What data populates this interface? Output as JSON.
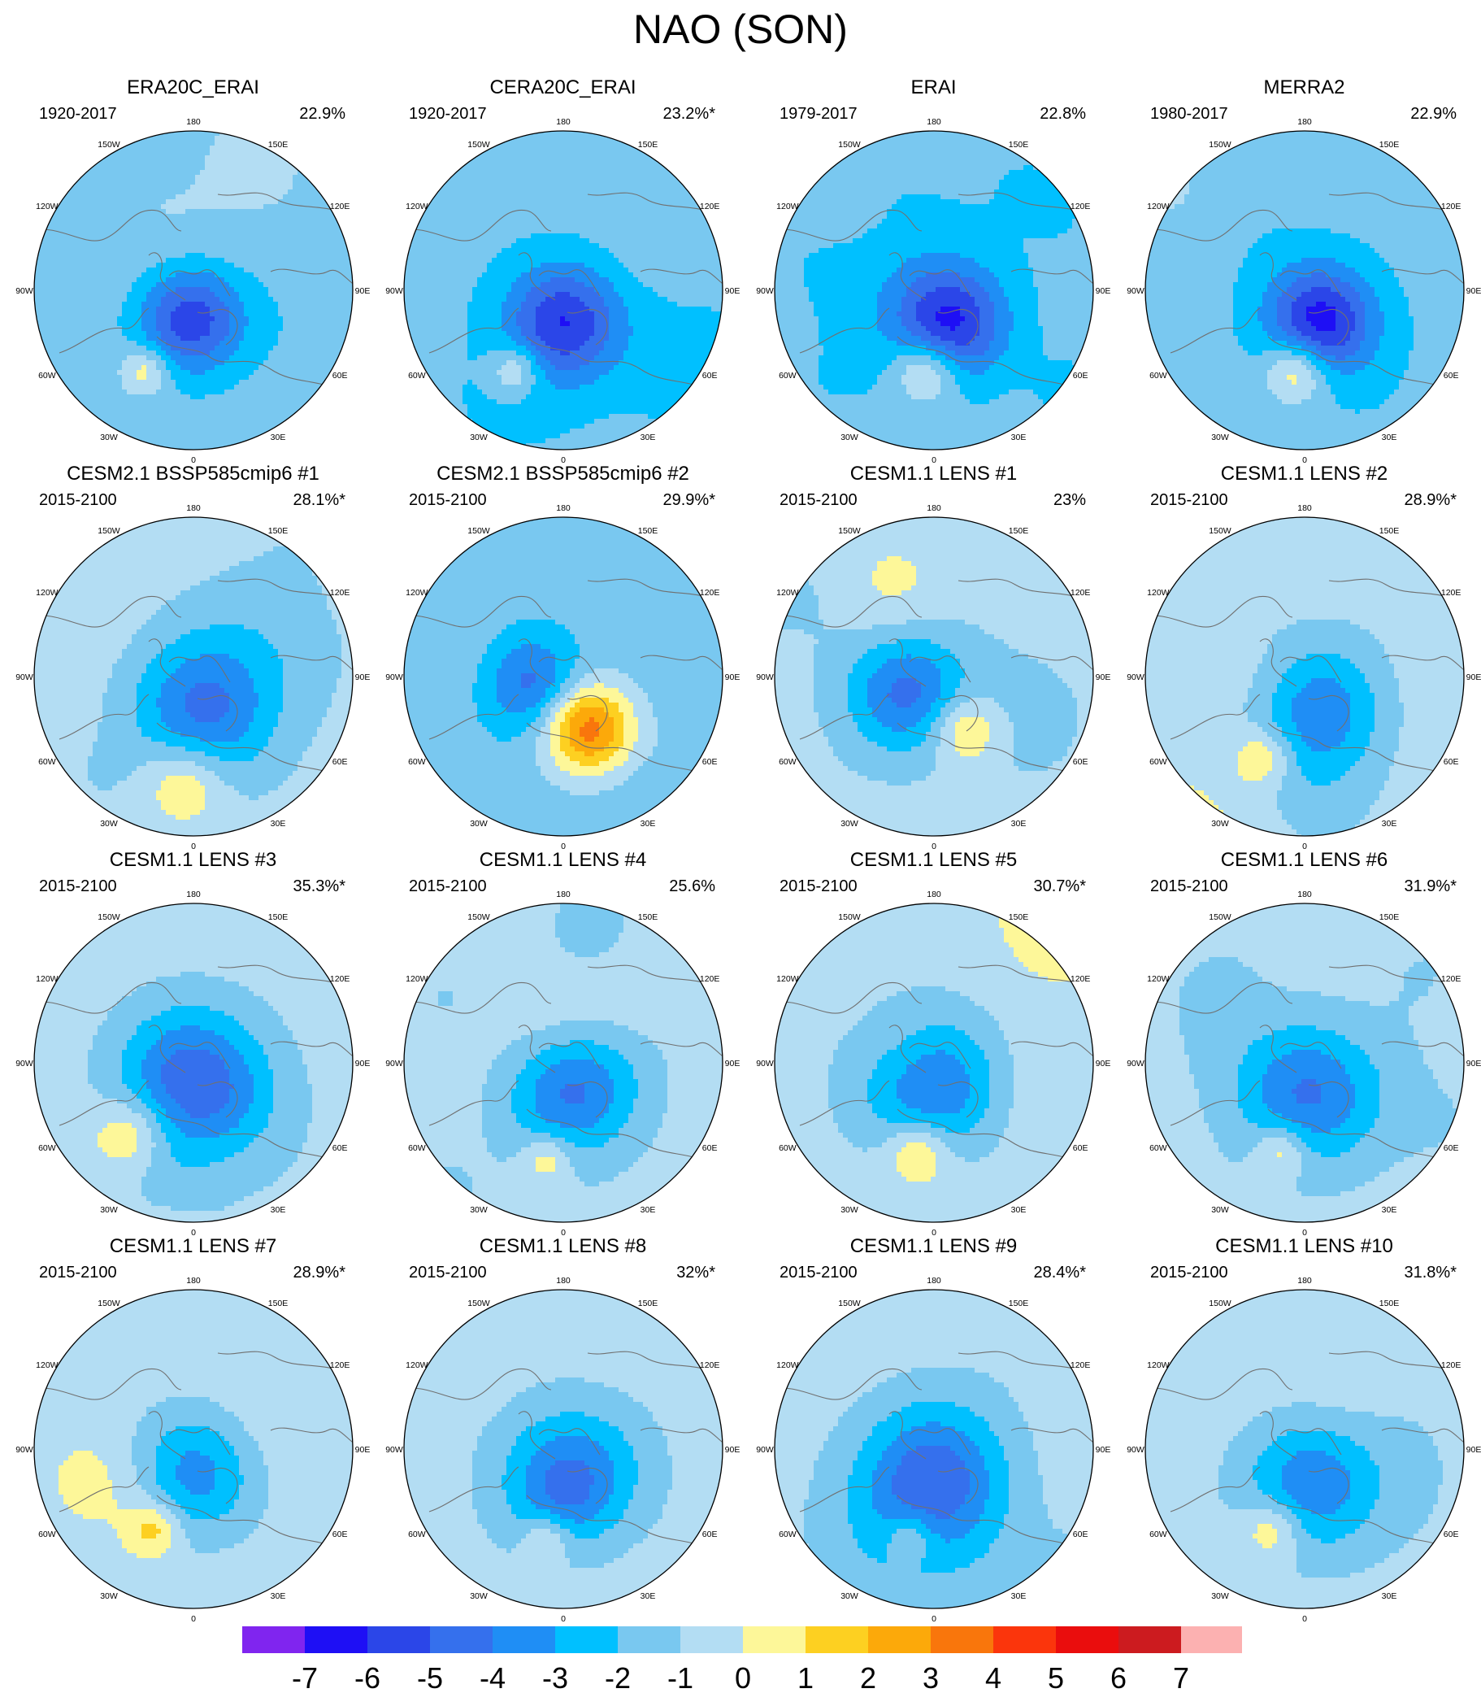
{
  "figure": {
    "title": "NAO (SON)",
    "lon_labels": [
      "180",
      "150E",
      "120E",
      "90E",
      "60E",
      "30E",
      "0",
      "30W",
      "60W",
      "90W",
      "120W",
      "150W"
    ]
  },
  "panels": [
    {
      "title": "ERA20C_ERAI",
      "period": "1920-2017",
      "variance": "22.9%",
      "pattern": {
        "lowPos": [
          -0.02,
          0.18
        ],
        "lowAmp": -4.3,
        "lowR": 0.24,
        "highPos": [
          -0.3,
          0.5
        ],
        "highAmp": 2.4,
        "highR": 0.14,
        "ambient": -0.5
      }
    },
    {
      "title": "CERA20C_ERAI",
      "period": "1920-2017",
      "variance": "23.2%*",
      "pattern": {
        "lowPos": [
          0.0,
          0.2
        ],
        "lowAmp": -4.2,
        "lowR": 0.25,
        "highPos": [
          -0.3,
          0.5
        ],
        "highAmp": 2.5,
        "highR": 0.15,
        "ambient": -0.6
      }
    },
    {
      "title": "ERAI",
      "period": "1979-2017",
      "variance": "22.8%",
      "pattern": {
        "lowPos": [
          0.1,
          0.2
        ],
        "lowAmp": -4.6,
        "lowR": 0.25,
        "highPos": [
          -0.05,
          0.5
        ],
        "highAmp": 3.1,
        "highR": 0.18,
        "ambient": -0.6
      }
    },
    {
      "title": "MERRA2",
      "period": "1980-2017",
      "variance": "22.9%",
      "pattern": {
        "lowPos": [
          0.1,
          0.2
        ],
        "lowAmp": -4.8,
        "lowR": 0.24,
        "highPos": [
          -0.05,
          0.5
        ],
        "highAmp": 3.2,
        "highR": 0.18,
        "ambient": -0.6
      }
    },
    {
      "title": "CESM2.1 BSSP585cmip6 #1",
      "period": "2015-2100",
      "variance": "28.1%*",
      "pattern": {
        "lowPos": [
          0.05,
          0.22
        ],
        "lowAmp": -3.8,
        "lowR": 0.32,
        "highPos": [
          -0.05,
          0.65
        ],
        "highAmp": 2.2,
        "highR": 0.24,
        "ambient": 0.4
      }
    },
    {
      "title": "CESM2.1 BSSP585cmip6 #2",
      "period": "2015-2100",
      "variance": "29.9%*",
      "pattern": {
        "lowPos": [
          -0.2,
          0.05
        ],
        "lowAmp": -3.0,
        "lowR": 0.22,
        "highPos": [
          0.15,
          0.32
        ],
        "highAmp": 5.2,
        "highR": 0.26,
        "ambient": -0.6
      }
    },
    {
      "title": "CESM1.1 LENS #1",
      "period": "2015-2100",
      "variance": "23%",
      "pattern": {
        "lowPos": [
          -0.18,
          0.1
        ],
        "lowAmp": -3.6,
        "lowR": 0.26,
        "highPos": [
          0.2,
          0.33
        ],
        "highAmp": 2.4,
        "highR": 0.2,
        "ambient": 0.4
      }
    },
    {
      "title": "CESM1.1 LENS #2",
      "period": "2015-2100",
      "variance": "28.9%*",
      "pattern": {
        "lowPos": [
          0.05,
          0.2
        ],
        "lowAmp": -3.6,
        "lowR": 0.3,
        "highPos": [
          -0.25,
          0.5
        ],
        "highAmp": 2.1,
        "highR": 0.17,
        "ambient": 0.5
      }
    },
    {
      "title": "CESM1.1 LENS #3",
      "period": "2015-2100",
      "variance": "35.3%*",
      "pattern": {
        "lowPos": [
          0.0,
          0.15
        ],
        "lowAmp": -3.9,
        "lowR": 0.34,
        "highPos": [
          -0.38,
          0.45
        ],
        "highAmp": 2.2,
        "highR": 0.22,
        "ambient": 0.5
      }
    },
    {
      "title": "CESM1.1 LENS #4",
      "period": "2015-2100",
      "variance": "25.6%",
      "pattern": {
        "lowPos": [
          0.05,
          0.2
        ],
        "lowAmp": -3.9,
        "lowR": 0.28,
        "highPos": [
          -0.1,
          0.6
        ],
        "highAmp": 1.9,
        "highR": 0.14,
        "ambient": 0.4
      }
    },
    {
      "title": "CESM1.1 LENS #5",
      "period": "2015-2100",
      "variance": "30.7%*",
      "pattern": {
        "lowPos": [
          0.0,
          0.15
        ],
        "lowAmp": -3.6,
        "lowR": 0.32,
        "highPos": [
          -0.1,
          0.55
        ],
        "highAmp": 2.2,
        "highR": 0.18,
        "ambient": 0.4
      }
    },
    {
      "title": "CESM1.1 LENS #6",
      "period": "2015-2100",
      "variance": "31.9%*",
      "pattern": {
        "lowPos": [
          0.02,
          0.18
        ],
        "lowAmp": -3.6,
        "lowR": 0.32,
        "highPos": [
          -0.15,
          0.55
        ],
        "highAmp": 2.1,
        "highR": 0.15,
        "ambient": 0.4
      }
    },
    {
      "title": "CESM1.1 LENS #7",
      "period": "2015-2100",
      "variance": "28.9%*",
      "pattern": {
        "lowPos": [
          0.0,
          0.15
        ],
        "lowAmp": -3.4,
        "lowR": 0.28,
        "highPos": [
          -0.25,
          0.5
        ],
        "highAmp": 2.2,
        "highR": 0.15,
        "ambient": 0.45
      }
    },
    {
      "title": "CESM1.1 LENS #8",
      "period": "2015-2100",
      "variance": "32%*",
      "pattern": {
        "lowPos": [
          0.05,
          0.2
        ],
        "lowAmp": -3.9,
        "lowR": 0.3,
        "highPos": [
          -0.1,
          0.55
        ],
        "highAmp": 1.9,
        "highR": 0.14,
        "ambient": 0.4
      }
    },
    {
      "title": "CESM1.1 LENS #9",
      "period": "2015-2100",
      "variance": "28.4%*",
      "pattern": {
        "lowPos": [
          0.0,
          0.15
        ],
        "lowAmp": -3.4,
        "lowR": 0.32,
        "highPos": [
          -0.15,
          0.55
        ],
        "highAmp": 1.9,
        "highR": 0.14,
        "ambient": 0.4
      }
    },
    {
      "title": "CESM1.1 LENS #10",
      "period": "2015-2100",
      "variance": "31.8%*",
      "pattern": {
        "lowPos": [
          0.05,
          0.2
        ],
        "lowAmp": -3.6,
        "lowR": 0.3,
        "highPos": [
          -0.2,
          0.5
        ],
        "highAmp": 2.1,
        "highR": 0.17,
        "ambient": 0.45
      }
    }
  ],
  "colorbar": {
    "labels": [
      "-7",
      "-6",
      "-5",
      "-4",
      "-3",
      "-2",
      "-1",
      "0",
      "1",
      "2",
      "3",
      "4",
      "5",
      "6",
      "7"
    ],
    "colors": [
      "#8025ef",
      "#1e0ff5",
      "#2b46e8",
      "#3570ed",
      "#1f8ef5",
      "#00c0ff",
      "#79c8f0",
      "#b3ddf3",
      "#fdf799",
      "#fdd021",
      "#fca90a",
      "#f9760c",
      "#fb350c",
      "#ea0d0d",
      "#cc1b1f",
      "#fcb1b1"
    ]
  },
  "colors": {
    "land_outline": "#707070",
    "coast_outline": "#9a9a9a"
  }
}
